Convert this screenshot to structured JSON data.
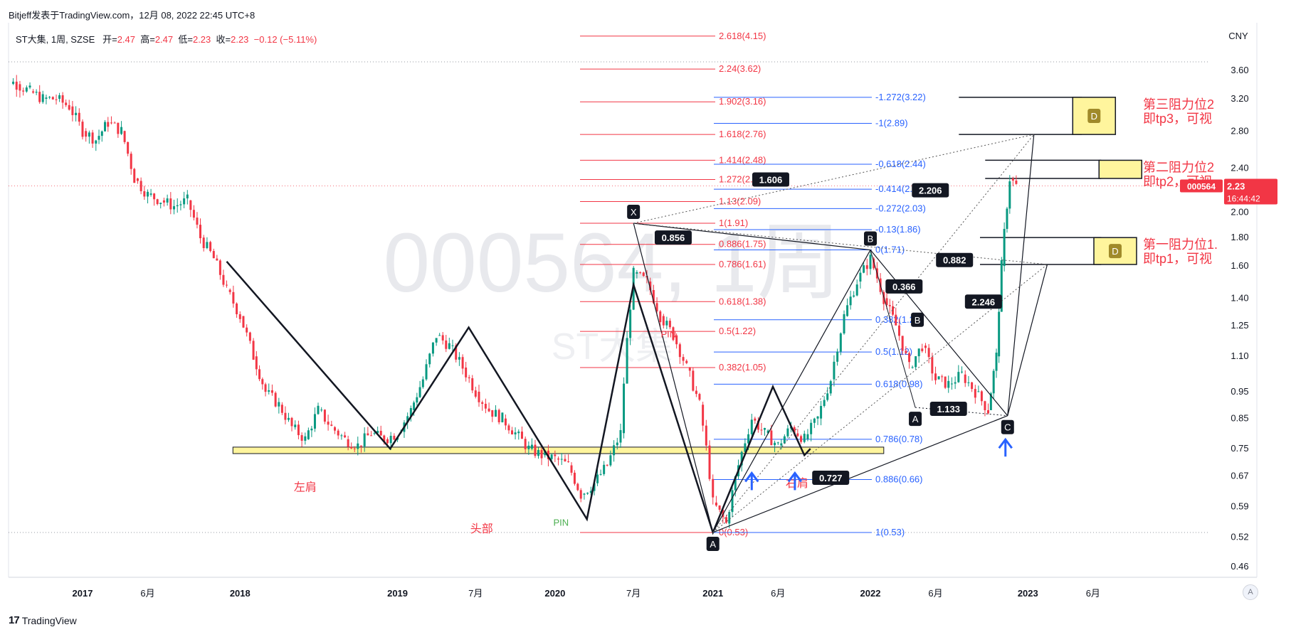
{
  "header": {
    "publisher": "Bitjeff发表于TradingView.com，12月 08, 2022 22:45 UTC+8",
    "symbol": "ST大集, 1周, SZSE",
    "o_label": "开=",
    "o": "2.47",
    "h_label": "高=",
    "h": "2.47",
    "l_label": "低=",
    "l": "2.23",
    "c_label": "收=",
    "c": "2.23",
    "change": "−0.12 (−5.11%)"
  },
  "watermark": {
    "main": "000564, 1周",
    "sub": "ST大集"
  },
  "footer": {
    "logo_mark": "17",
    "logo_text": "TradingView",
    "auto_label": "A"
  },
  "colors": {
    "up": "#089981",
    "down": "#f23645",
    "fib_red": "#f23645",
    "fib_blue": "#2962ff",
    "zone": "#fff59d",
    "pin_green": "#4caf50"
  },
  "chart_data": {
    "type": "candlestick",
    "title": "ST大集, 1周, SZSE",
    "y_scale": "log",
    "y_axis_unit": "CNY",
    "y_ticks": [
      "3.60",
      "3.20",
      "2.80",
      "2.40",
      "2.00",
      "1.80",
      "1.60",
      "1.40",
      "1.25",
      "1.10",
      "0.95",
      "0.85",
      "0.75",
      "0.67",
      "0.59",
      "0.52",
      "0.46"
    ],
    "y_tick_values": [
      3.6,
      3.2,
      2.8,
      2.4,
      2.0,
      1.8,
      1.6,
      1.4,
      1.25,
      1.1,
      0.95,
      0.85,
      0.75,
      0.67,
      0.59,
      0.52,
      0.46
    ],
    "x_ticks": [
      {
        "label": "2017",
        "date": "2017-01-01",
        "bold": true
      },
      {
        "label": "6月",
        "date": "2017-06-01",
        "bold": false
      },
      {
        "label": "2018",
        "date": "2018-01-01",
        "bold": true
      },
      {
        "label": "2019",
        "date": "2019-01-01",
        "bold": true
      },
      {
        "label": "7月",
        "date": "2019-07-01",
        "bold": false
      },
      {
        "label": "2020",
        "date": "2020-01-01",
        "bold": true
      },
      {
        "label": "7月",
        "date": "2020-07-01",
        "bold": false
      },
      {
        "label": "2021",
        "date": "2021-01-01",
        "bold": true
      },
      {
        "label": "6月",
        "date": "2021-06-01",
        "bold": false
      },
      {
        "label": "2022",
        "date": "2022-01-01",
        "bold": true
      },
      {
        "label": "6月",
        "date": "2022-06-01",
        "bold": false
      },
      {
        "label": "2023",
        "date": "2023-01-01",
        "bold": true
      },
      {
        "label": "6月",
        "date": "2023-06-01",
        "bold": false
      }
    ],
    "price_series": [
      {
        "date": "2016-06-01",
        "close": 3.35
      },
      {
        "date": "2016-07-01",
        "close": 3.5
      },
      {
        "date": "2016-08-01",
        "close": 3.4
      },
      {
        "date": "2016-09-01",
        "close": 3.3
      },
      {
        "date": "2016-10-01",
        "close": 3.2
      },
      {
        "date": "2016-11-01",
        "close": 3.2
      },
      {
        "date": "2016-12-01",
        "close": 3.1
      },
      {
        "date": "2017-01-01",
        "close": 2.8
      },
      {
        "date": "2017-02-01",
        "close": 2.7
      },
      {
        "date": "2017-03-01",
        "close": 2.9
      },
      {
        "date": "2017-04-01",
        "close": 2.8
      },
      {
        "date": "2017-05-01",
        "close": 2.3
      },
      {
        "date": "2017-06-01",
        "close": 2.15
      },
      {
        "date": "2017-07-01",
        "close": 2.1
      },
      {
        "date": "2017-08-01",
        "close": 2.05
      },
      {
        "date": "2017-09-01",
        "close": 2.1
      },
      {
        "date": "2017-10-01",
        "close": 1.8
      },
      {
        "date": "2017-11-01",
        "close": 1.65
      },
      {
        "date": "2017-12-01",
        "close": 1.45
      },
      {
        "date": "2018-01-01",
        "close": 1.3
      },
      {
        "date": "2018-02-01",
        "close": 1.1
      },
      {
        "date": "2018-03-01",
        "close": 0.95
      },
      {
        "date": "2018-04-01",
        "close": 0.9
      },
      {
        "date": "2018-05-01",
        "close": 0.82
      },
      {
        "date": "2018-06-01",
        "close": 0.78
      },
      {
        "date": "2018-07-01",
        "close": 0.88
      },
      {
        "date": "2018-08-01",
        "close": 0.82
      },
      {
        "date": "2018-09-01",
        "close": 0.78
      },
      {
        "date": "2018-10-01",
        "close": 0.76
      },
      {
        "date": "2018-11-01",
        "close": 0.8
      },
      {
        "date": "2018-12-01",
        "close": 0.78
      },
      {
        "date": "2019-01-01",
        "close": 0.8
      },
      {
        "date": "2019-02-01",
        "close": 0.88
      },
      {
        "date": "2019-03-01",
        "close": 1.0
      },
      {
        "date": "2019-04-01",
        "close": 1.2
      },
      {
        "date": "2019-05-01",
        "close": 1.15
      },
      {
        "date": "2019-06-01",
        "close": 1.05
      },
      {
        "date": "2019-07-01",
        "close": 0.95
      },
      {
        "date": "2019-08-01",
        "close": 0.88
      },
      {
        "date": "2019-09-01",
        "close": 0.85
      },
      {
        "date": "2019-10-01",
        "close": 0.8
      },
      {
        "date": "2019-11-01",
        "close": 0.75
      },
      {
        "date": "2019-12-01",
        "close": 0.73
      },
      {
        "date": "2020-01-01",
        "close": 0.72
      },
      {
        "date": "2020-02-01",
        "close": 0.7
      },
      {
        "date": "2020-03-01",
        "close": 0.62
      },
      {
        "date": "2020-04-01",
        "close": 0.65
      },
      {
        "date": "2020-05-01",
        "close": 0.7
      },
      {
        "date": "2020-06-01",
        "close": 0.8
      },
      {
        "date": "2020-07-01",
        "close": 1.55
      },
      {
        "date": "2020-08-01",
        "close": 1.5
      },
      {
        "date": "2020-09-01",
        "close": 1.3
      },
      {
        "date": "2020-10-01",
        "close": 1.2
      },
      {
        "date": "2020-11-01",
        "close": 1.05
      },
      {
        "date": "2020-12-01",
        "close": 0.9
      },
      {
        "date": "2021-01-01",
        "close": 0.6
      },
      {
        "date": "2021-02-01",
        "close": 0.55
      },
      {
        "date": "2021-03-01",
        "close": 0.7
      },
      {
        "date": "2021-04-01",
        "close": 0.85
      },
      {
        "date": "2021-05-01",
        "close": 0.8
      },
      {
        "date": "2021-06-01",
        "close": 0.76
      },
      {
        "date": "2021-07-01",
        "close": 0.82
      },
      {
        "date": "2021-08-01",
        "close": 0.78
      },
      {
        "date": "2021-09-01",
        "close": 0.85
      },
      {
        "date": "2021-10-01",
        "close": 1.0
      },
      {
        "date": "2021-11-01",
        "close": 1.3
      },
      {
        "date": "2021-12-01",
        "close": 1.5
      },
      {
        "date": "2022-01-01",
        "close": 1.65
      },
      {
        "date": "2022-02-01",
        "close": 1.4
      },
      {
        "date": "2022-03-01",
        "close": 1.25
      },
      {
        "date": "2022-04-01",
        "close": 1.05
      },
      {
        "date": "2022-05-01",
        "close": 1.15
      },
      {
        "date": "2022-06-01",
        "close": 1.0
      },
      {
        "date": "2022-07-01",
        "close": 0.98
      },
      {
        "date": "2022-08-01",
        "close": 1.02
      },
      {
        "date": "2022-09-01",
        "close": 0.95
      },
      {
        "date": "2022-10-01",
        "close": 0.88
      },
      {
        "date": "2022-10-20",
        "close": 1.1
      },
      {
        "date": "2022-11-01",
        "close": 1.6
      },
      {
        "date": "2022-11-20",
        "close": 2.3
      },
      {
        "date": "2022-12-05",
        "close": 2.23
      }
    ],
    "last_price": {
      "label": "000564",
      "value": "2.23",
      "countdown": "16:44:42"
    },
    "fib_red": [
      {
        "text": "2.618(4.15)",
        "v": 4.15
      },
      {
        "text": "2.24(3.62)",
        "v": 3.62
      },
      {
        "text": "1.902(3.16)",
        "v": 3.16
      },
      {
        "text": "1.618(2.76)",
        "v": 2.76
      },
      {
        "text": "1.414(2.48)",
        "v": 2.48
      },
      {
        "text": "1.272(2.29)",
        "v": 2.29
      },
      {
        "text": "1.13(2.09)",
        "v": 2.09
      },
      {
        "text": "1(1.91)",
        "v": 1.91
      },
      {
        "text": "0.886(1.75)",
        "v": 1.75
      },
      {
        "text": "0.786(1.61)",
        "v": 1.61
      },
      {
        "text": "0.618(1.38)",
        "v": 1.38
      },
      {
        "text": "0.5(1.22)",
        "v": 1.22
      },
      {
        "text": "0.382(1.05)",
        "v": 1.05
      },
      {
        "text": "0(0.53)",
        "v": 0.53
      }
    ],
    "fib_blue": [
      {
        "text": "-1.272(3.22)",
        "v": 3.22
      },
      {
        "text": "-1(2.89)",
        "v": 2.89
      },
      {
        "text": "-0.618(2.44)",
        "v": 2.44
      },
      {
        "text": "-0.414(2.20)",
        "v": 2.2
      },
      {
        "text": "-0.272(2.03)",
        "v": 2.03
      },
      {
        "text": "-0.13(1.86)",
        "v": 1.86
      },
      {
        "text": "0(1.71)",
        "v": 1.71
      },
      {
        "text": "0.382(1.28)",
        "v": 1.28
      },
      {
        "text": "0.5(1.12)",
        "v": 1.12
      },
      {
        "text": "0.618(0.98)",
        "v": 0.98
      },
      {
        "text": "0.786(0.78)",
        "v": 0.78
      },
      {
        "text": "0.886(0.66)",
        "v": 0.66
      },
      {
        "text": "1(0.53)",
        "v": 0.53
      }
    ],
    "support_zone": {
      "from": "2018-01-01",
      "to": "2022-02-01",
      "low": 0.735,
      "high": 0.755
    },
    "hs_pattern": [
      {
        "date": "2017-12-01",
        "v": 1.63
      },
      {
        "date": "2018-12-15",
        "v": 0.75
      },
      {
        "date": "2019-06-15",
        "v": 1.24
      },
      {
        "date": "2020-03-15",
        "v": 0.56
      },
      {
        "date": "2020-07-01",
        "v": 1.48
      },
      {
        "date": "2021-01-01",
        "v": 0.53
      },
      {
        "date": "2021-05-20",
        "v": 0.97
      },
      {
        "date": "2021-08-01",
        "v": 0.73
      },
      {
        "date": "2021-08-15",
        "v": 0.75
      }
    ],
    "hs_labels": [
      {
        "text": "左肩",
        "date": "2018-06-01",
        "v": 0.63,
        "color": "#f23645"
      },
      {
        "text": "头部",
        "date": "2019-07-15",
        "v": 0.53,
        "color": "#f23645"
      },
      {
        "text": "右肩",
        "date": "2021-07-15",
        "v": 0.64,
        "color": "#f23645"
      },
      {
        "text": "PIN",
        "date": "2020-01-15",
        "v": 0.545,
        "color": "#4caf50"
      },
      {
        "text": "PIN",
        "date": "2020-09-20",
        "v": 1.19,
        "color": "#f23645"
      }
    ],
    "points": [
      {
        "label": "X",
        "date": "2020-07-01",
        "v": 1.91,
        "pos": "above"
      },
      {
        "label": "A",
        "date": "2021-01-01",
        "v": 0.53,
        "pos": "below"
      },
      {
        "label": "B",
        "date": "2022-01-01",
        "v": 1.71,
        "pos": "above"
      },
      {
        "label": "C",
        "date": "2022-11-15",
        "v": 0.86,
        "pos": "below"
      },
      {
        "label": "A",
        "date": "2022-04-15",
        "v": 0.89,
        "pos": "below"
      },
      {
        "label": "B",
        "date": "2022-04-20",
        "v": 1.28,
        "pos": "center"
      }
    ],
    "ratios": [
      {
        "text": "0.856",
        "date": "2020-10-01",
        "v": 1.8
      },
      {
        "text": "1.606",
        "date": "2021-05-15",
        "v": 2.29
      },
      {
        "text": "2.206",
        "date": "2022-05-20",
        "v": 2.19
      },
      {
        "text": "0.366",
        "date": "2022-03-20",
        "v": 1.47
      },
      {
        "text": "1.133",
        "date": "2022-07-01",
        "v": 0.885
      },
      {
        "text": "0.882",
        "date": "2022-07-15",
        "v": 1.64
      },
      {
        "text": "2.246",
        "date": "2022-09-20",
        "v": 1.38
      },
      {
        "text": "0.727",
        "date": "2021-10-01",
        "v": 0.665
      }
    ],
    "targets": [
      {
        "text": "D",
        "date_from": "2022-11-01",
        "date_to": "2023-03-01",
        "low": 2.76,
        "high": 3.22,
        "note1": "第三阻力位2",
        "note2": "即tp3，可视"
      },
      {
        "text": "",
        "date_from": "2023-01-01",
        "date_to": "2023-04-15",
        "low": 2.3,
        "high": 2.48,
        "note1": "第二阻力位2",
        "note2": "即tp2，可视"
      },
      {
        "text": "D",
        "date_from": "2022-12-20",
        "date_to": "2023-04-15",
        "low": 1.61,
        "high": 1.8,
        "note1": "第一阻力位1.",
        "note2": "即tp1，可视"
      }
    ],
    "arrows": [
      {
        "date": "2021-04-01",
        "v": 0.67
      },
      {
        "date": "2021-07-10",
        "v": 0.67
      },
      {
        "date": "2022-11-10",
        "v": 0.77
      }
    ]
  }
}
